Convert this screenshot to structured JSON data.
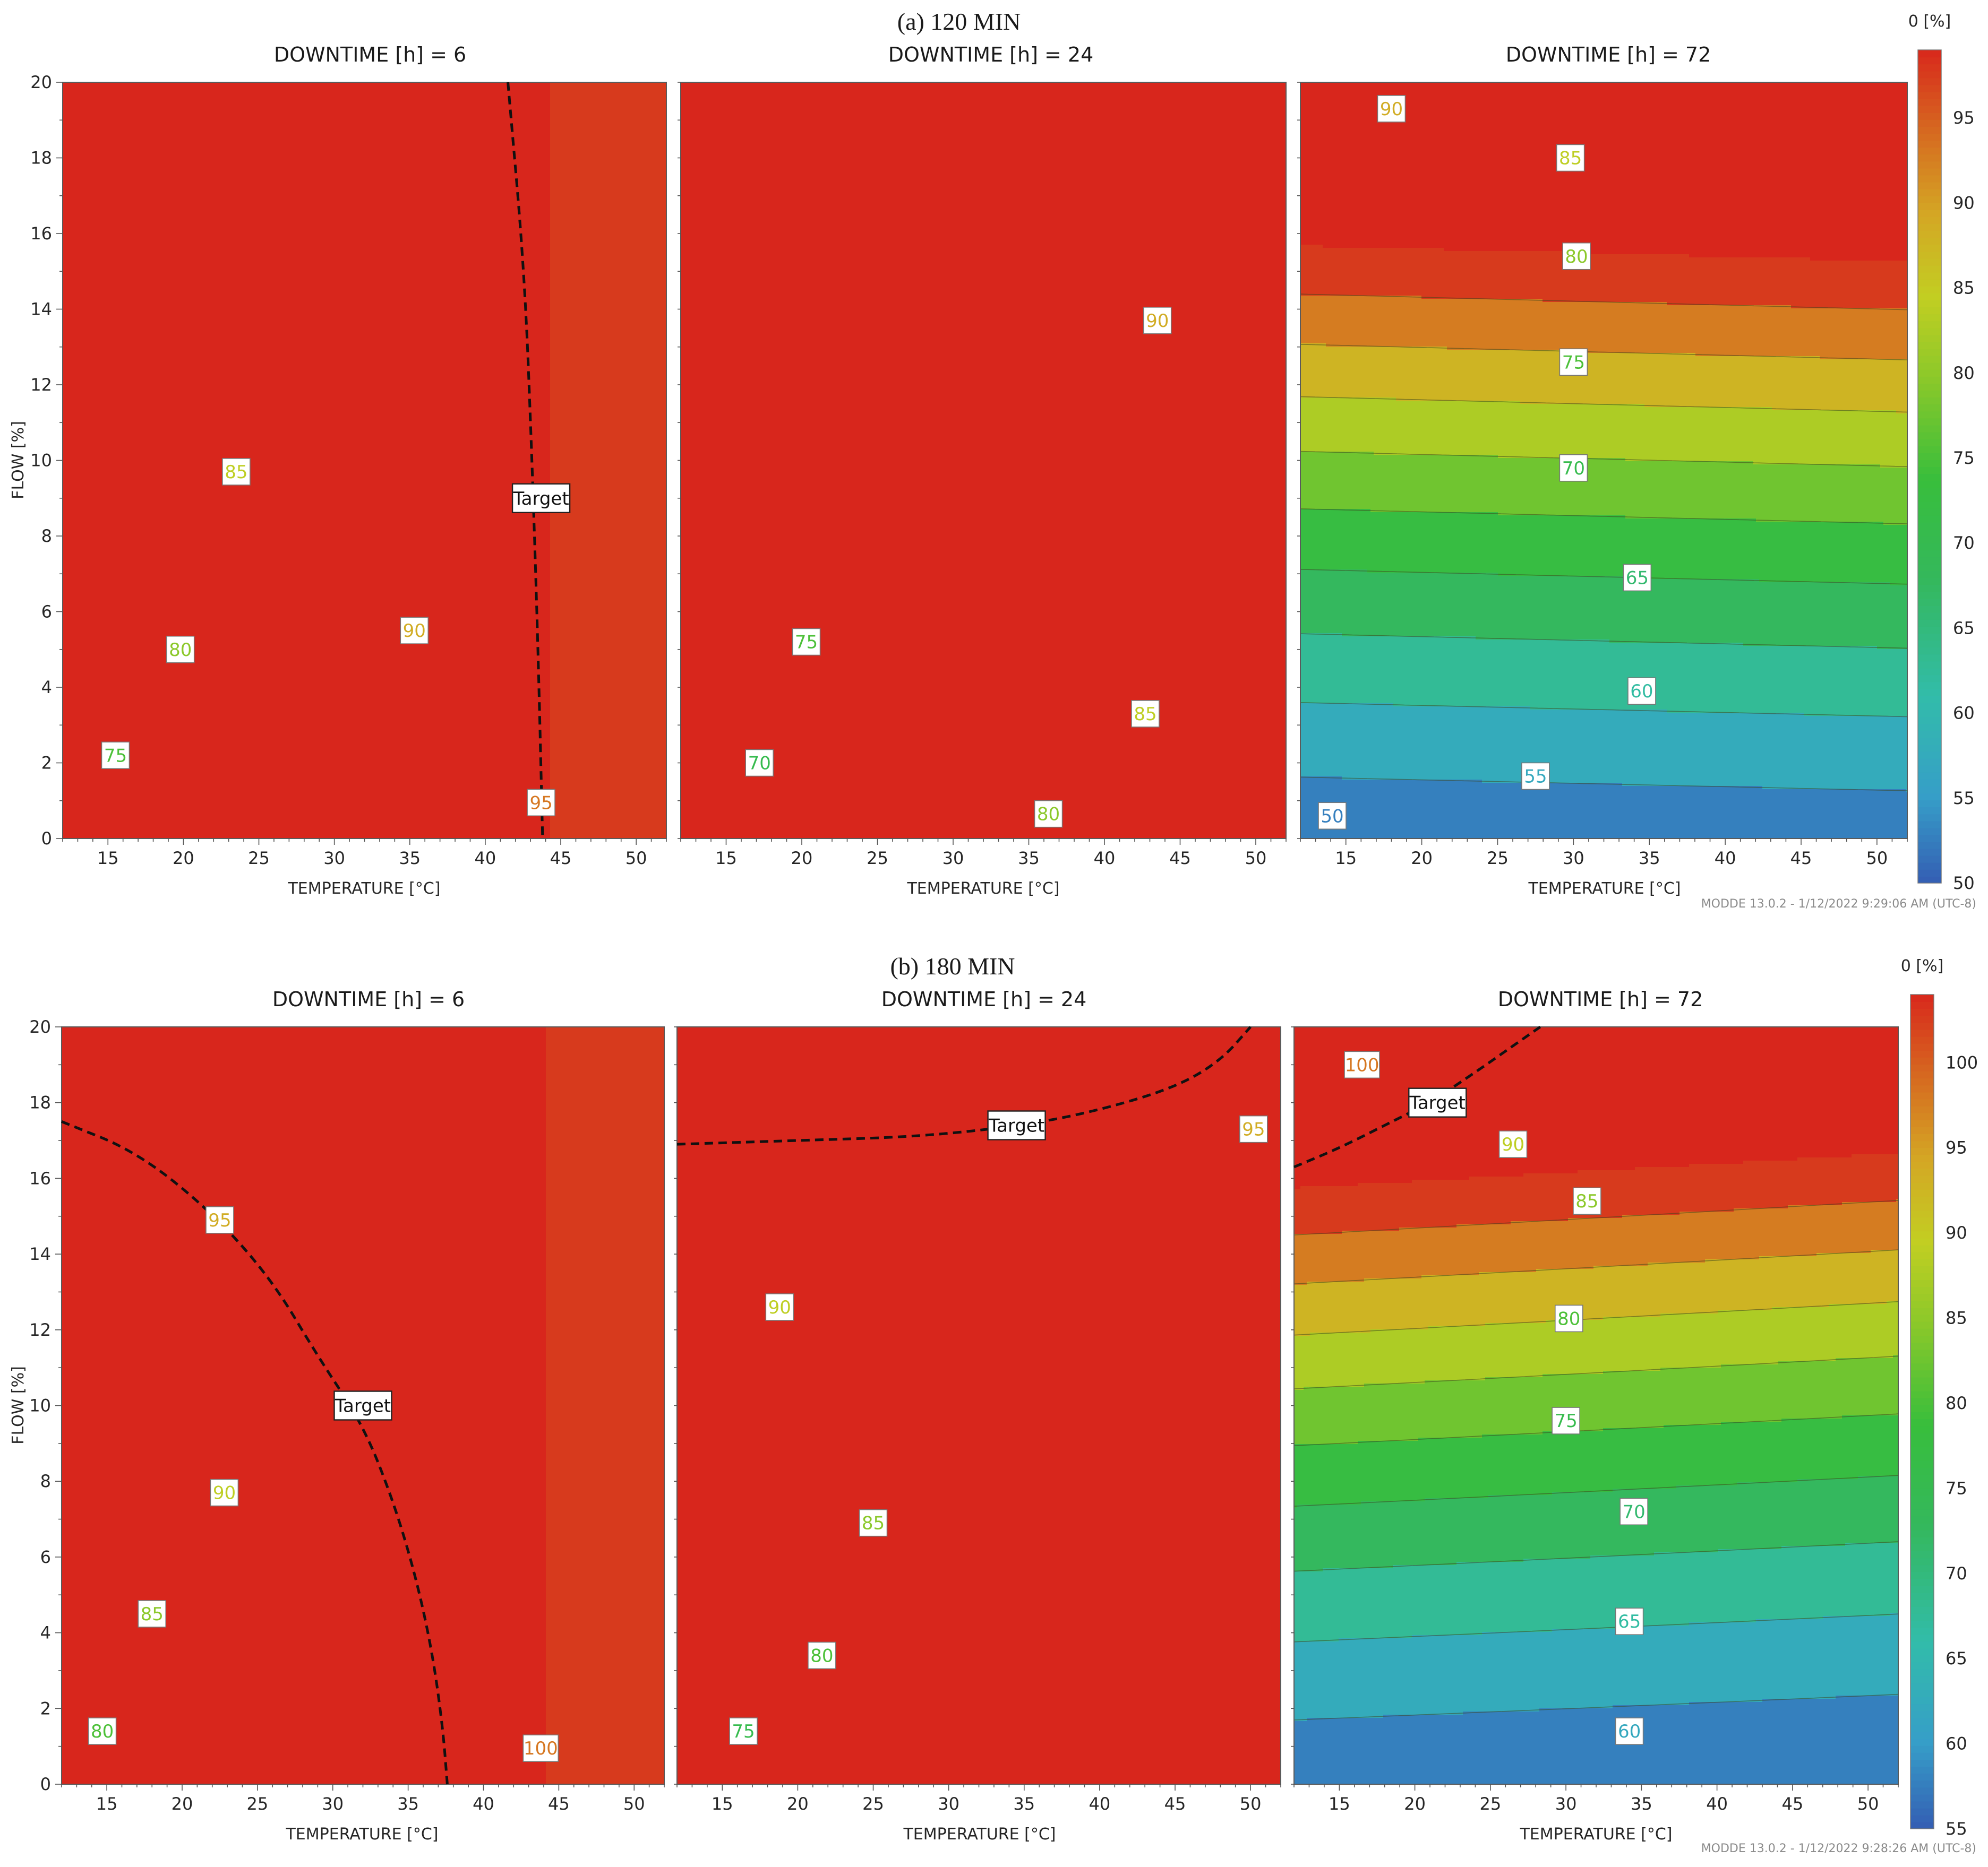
{
  "chart_data": [
    {
      "type": "contour",
      "title": "(a) 120 MIN",
      "colorbar": {
        "label": "0 [%]",
        "range": [
          50,
          99
        ],
        "ticks": [
          50,
          55,
          60,
          65,
          70,
          75,
          80,
          85,
          90,
          95
        ]
      },
      "footer": "MODDE 13.0.2 - 1/12/2022 9:29:06 AM (UTC-8)",
      "panels": [
        {
          "title": "DOWNTIME [h] = 6",
          "xlabel": "TEMPERATURE [°C]",
          "ylabel": "FLOW [%]",
          "xlim": [
            12,
            52
          ],
          "ylim": [
            0,
            20
          ],
          "xticks": [
            15,
            20,
            25,
            30,
            35,
            40,
            45,
            50
          ],
          "yticks": [
            0,
            2,
            4,
            6,
            8,
            10,
            12,
            14,
            16,
            18,
            20
          ],
          "field": {
            "type": "radial",
            "cx": 5,
            "cy": -8,
            "ry": 3.0,
            "base": 64.0,
            "scale": 1.005,
            "pow": 0.63,
            "cliffStart": 41,
            "cliffEnd": 44.5,
            "cliffTop": 99
          },
          "levels": [
            70,
            75,
            80,
            85,
            90,
            95
          ],
          "labels": [
            {
              "text": "75",
              "x": 15.5,
              "y": 2.2
            },
            {
              "text": "80",
              "x": 19.8,
              "y": 5.0
            },
            {
              "text": "85",
              "x": 23.5,
              "y": 9.7
            },
            {
              "text": "90",
              "x": 35.3,
              "y": 5.5
            },
            {
              "text": "95",
              "x": 43.7,
              "y": 0.95
            }
          ],
          "target": {
            "label": "Target",
            "points": [
              [
                41.5,
                20
              ],
              [
                42.6,
                15
              ],
              [
                43.1,
                10
              ],
              [
                43.5,
                5
              ],
              [
                43.8,
                0
              ]
            ],
            "labelAt": [
              43.7,
              9.0
            ]
          }
        },
        {
          "title": "DOWNTIME [h] = 24",
          "xlabel": "TEMPERATURE [°C]",
          "ylabel": "",
          "xlim": [
            12,
            52
          ],
          "ylim": [
            0,
            20
          ],
          "xticks": [
            15,
            20,
            25,
            30,
            35,
            40,
            45,
            50
          ],
          "yticks": [
            0,
            2,
            4,
            6,
            8,
            10,
            12,
            14,
            16,
            18,
            20
          ],
          "field": {
            "type": "radial",
            "cx": 6,
            "cy": -12,
            "ry": 2.35,
            "base": 62.8,
            "scale": 0.725,
            "pow": 0.66
          },
          "levels": [
            65,
            70,
            75,
            80,
            85,
            90
          ],
          "labels": [
            {
              "text": "70",
              "x": 17.2,
              "y": 2.0
            },
            {
              "text": "75",
              "x": 20.3,
              "y": 5.2
            },
            {
              "text": "80",
              "x": 36.3,
              "y": 0.65
            },
            {
              "text": "85",
              "x": 42.7,
              "y": 3.3
            },
            {
              "text": "90",
              "x": 43.5,
              "y": 13.7
            }
          ],
          "target": null
        },
        {
          "title": "DOWNTIME [h] = 72",
          "xlabel": "TEMPERATURE [°C]",
          "ylabel": "",
          "xlim": [
            12,
            52
          ],
          "ylim": [
            0,
            20
          ],
          "xticks": [
            15,
            20,
            25,
            30,
            35,
            40,
            45,
            50
          ],
          "yticks": [
            0,
            2,
            4,
            6,
            8,
            10,
            12,
            14,
            16,
            18,
            20
          ],
          "field": {
            "type": "linear",
            "a": 51.2,
            "b": 2.25,
            "c": 0.02,
            "d": 0.055,
            "e": 0.0014,
            "xref": 12
          },
          "levels": [
            50,
            55,
            60,
            65,
            70,
            75,
            80,
            85,
            90,
            95
          ],
          "labels": [
            {
              "text": "50",
              "x": 14.1,
              "y": 0.6
            },
            {
              "text": "55",
              "x": 27.5,
              "y": 1.65
            },
            {
              "text": "60",
              "x": 34.5,
              "y": 3.9
            },
            {
              "text": "65",
              "x": 34.2,
              "y": 6.9
            },
            {
              "text": "70",
              "x": 30.0,
              "y": 9.8
            },
            {
              "text": "75",
              "x": 30.0,
              "y": 12.6
            },
            {
              "text": "80",
              "x": 30.2,
              "y": 15.4
            },
            {
              "text": "85",
              "x": 29.8,
              "y": 18.0
            },
            {
              "text": "90",
              "x": 18.0,
              "y": 19.3
            }
          ],
          "target": null
        }
      ]
    },
    {
      "type": "contour",
      "title": "(b) 180 MIN",
      "colorbar": {
        "label": "0 [%]",
        "range": [
          55,
          104
        ],
        "ticks": [
          55,
          60,
          65,
          70,
          75,
          80,
          85,
          90,
          95,
          100
        ]
      },
      "footer": "MODDE 13.0.2 - 1/12/2022 9:28:26 AM (UTC-8)",
      "panels": [
        {
          "title": "DOWNTIME [h] = 6",
          "xlabel": "TEMPERATURE [°C]",
          "ylabel": "FLOW [%]",
          "xlim": [
            12,
            52
          ],
          "ylim": [
            0,
            20
          ],
          "xticks": [
            15,
            20,
            25,
            30,
            35,
            40,
            45,
            50
          ],
          "yticks": [
            0,
            2,
            4,
            6,
            8,
            10,
            12,
            14,
            16,
            18,
            20
          ],
          "field": {
            "type": "radial",
            "cx": 7,
            "cy": -10,
            "ry": 2.55,
            "base": 73.0,
            "scale": 0.785,
            "pow": 0.68,
            "cliffStart": 42,
            "cliffEnd": 44.2,
            "cliffTop": 104
          },
          "levels": [
            75,
            80,
            85,
            90,
            95,
            100
          ],
          "labels": [
            {
              "text": "80",
              "x": 14.7,
              "y": 1.4
            },
            {
              "text": "85",
              "x": 18.0,
              "y": 4.5
            },
            {
              "text": "90",
              "x": 22.8,
              "y": 7.7
            },
            {
              "text": "95",
              "x": 22.5,
              "y": 14.9
            },
            {
              "text": "100",
              "x": 43.8,
              "y": 0.95
            }
          ],
          "target": {
            "label": "Target",
            "points": [
              [
                12,
                17.5
              ],
              [
                17,
                16.7
              ],
              [
                22,
                15.1
              ],
              [
                26,
                13.3
              ],
              [
                29,
                11.3
              ],
              [
                32,
                9.5
              ],
              [
                34,
                7.5
              ],
              [
                35.5,
                5.5
              ],
              [
                36.6,
                3.5
              ],
              [
                37.3,
                1.5
              ],
              [
                37.6,
                0
              ]
            ],
            "labelAt": [
              32.0,
              10.0
            ]
          }
        },
        {
          "title": "DOWNTIME [h] = 24",
          "xlabel": "TEMPERATURE [°C]",
          "ylabel": "",
          "xlim": [
            12,
            52
          ],
          "ylim": [
            0,
            20
          ],
          "xticks": [
            15,
            20,
            25,
            30,
            35,
            40,
            45,
            50
          ],
          "yticks": [
            0,
            2,
            4,
            6,
            8,
            10,
            12,
            14,
            16,
            18,
            20
          ],
          "field": {
            "type": "radial",
            "cx": 5,
            "cy": -9,
            "ry": 2.4,
            "base": 67.5,
            "scale": 0.795,
            "pow": 0.66,
            "stepY": 16.7,
            "stepH": 0.45,
            "stepTo": 97
          },
          "levels": [
            70,
            75,
            80,
            85,
            90,
            95
          ],
          "labels": [
            {
              "text": "75",
              "x": 16.4,
              "y": 1.4
            },
            {
              "text": "80",
              "x": 21.6,
              "y": 3.4
            },
            {
              "text": "85",
              "x": 25.0,
              "y": 6.9
            },
            {
              "text": "90",
              "x": 18.8,
              "y": 12.6
            },
            {
              "text": "95",
              "x": 50.2,
              "y": 17.3
            }
          ],
          "target": {
            "label": "Target",
            "points": [
              [
                12,
                16.9
              ],
              [
                20,
                17.0
              ],
              [
                28,
                17.1
              ],
              [
                35,
                17.4
              ],
              [
                40,
                17.8
              ],
              [
                45,
                18.4
              ],
              [
                48,
                19.1
              ],
              [
                50,
                20
              ]
            ],
            "labelAt": [
              34.5,
              17.4
            ]
          }
        },
        {
          "title": "DOWNTIME [h] = 72",
          "xlabel": "TEMPERATURE [°C]",
          "ylabel": "",
          "xlim": [
            12,
            52
          ],
          "ylim": [
            0,
            20
          ],
          "xticks": [
            15,
            20,
            25,
            30,
            35,
            40,
            45,
            50
          ],
          "yticks": [
            0,
            2,
            4,
            6,
            8,
            10,
            12,
            14,
            16,
            18,
            20
          ],
          "field": {
            "type": "linear",
            "a": 56.3,
            "b": 2.07,
            "c": -0.03,
            "d": 0.065,
            "e": -0.004,
            "xref": 12
          },
          "levels": [
            55,
            60,
            65,
            70,
            75,
            80,
            85,
            90,
            95,
            100
          ],
          "labels": [
            {
              "text": "60",
              "x": 34.2,
              "y": 1.4
            },
            {
              "text": "65",
              "x": 34.2,
              "y": 4.3
            },
            {
              "text": "70",
              "x": 34.5,
              "y": 7.2
            },
            {
              "text": "75",
              "x": 30.0,
              "y": 9.6
            },
            {
              "text": "80",
              "x": 30.2,
              "y": 12.3
            },
            {
              "text": "85",
              "x": 31.4,
              "y": 15.4
            },
            {
              "text": "90",
              "x": 26.5,
              "y": 16.9
            },
            {
              "text": "100",
              "x": 16.5,
              "y": 19.0
            }
          ],
          "target": {
            "label": "Target",
            "points": [
              [
                12,
                16.3
              ],
              [
                15,
                16.8
              ],
              [
                18,
                17.4
              ],
              [
                21,
                18.0
              ],
              [
                24,
                18.8
              ],
              [
                26.5,
                19.5
              ],
              [
                28.3,
                20
              ]
            ],
            "labelAt": [
              21.5,
              18.0
            ]
          }
        }
      ]
    }
  ]
}
